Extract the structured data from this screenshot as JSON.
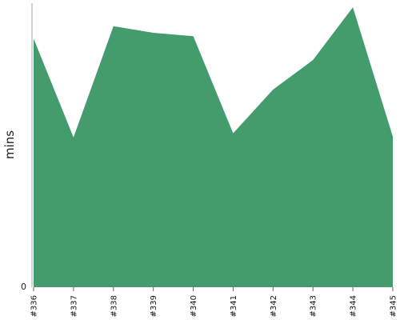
{
  "chart_data": {
    "type": "area",
    "ylabel": "mins",
    "categories": [
      "#336",
      "#337",
      "#338",
      "#339",
      "#340",
      "#341",
      "#342",
      "#343",
      "#344",
      "#345"
    ],
    "series": [
      {
        "values": [
          30.2,
          18.2,
          31.7,
          30.9,
          30.5,
          18.7,
          24.0,
          27.6,
          34.0,
          18.3
        ]
      }
    ],
    "ylim": [
      0,
      34.5
    ],
    "yticks": [
      "0"
    ],
    "grid": false,
    "colors": {
      "area": "#449c6c",
      "axis": "#aaaaaa",
      "tick": "#666666"
    }
  }
}
